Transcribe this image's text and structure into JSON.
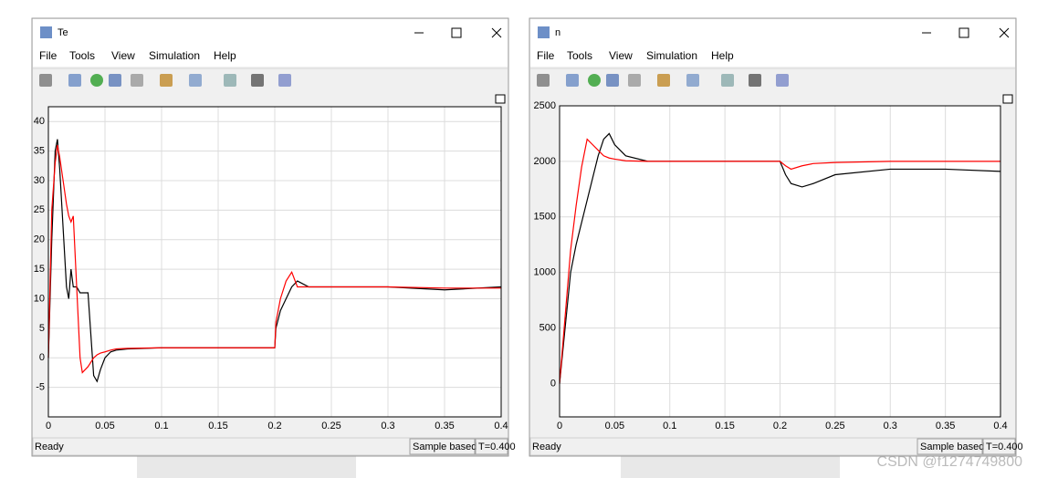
{
  "windows": [
    {
      "title": "Te",
      "menu": [
        "File",
        "Tools",
        "View",
        "Simulation",
        "Help"
      ],
      "status": "Ready",
      "sample": "Sample based",
      "time": "T=0.400"
    },
    {
      "title": "n",
      "menu": [
        "File",
        "Tools",
        "View",
        "Simulation",
        "Help"
      ],
      "status": "Ready",
      "sample": "Sample based",
      "time": "T=0.400"
    }
  ],
  "chart_data": [
    {
      "type": "line",
      "grid": true,
      "xlim": [
        0,
        0.4
      ],
      "ylim": [
        -10,
        42.5
      ],
      "xticks": [
        0,
        0.05,
        0.1,
        0.15,
        0.2,
        0.25,
        0.3,
        0.35,
        0.4
      ],
      "yticks": [
        -5,
        0,
        5,
        10,
        15,
        20,
        25,
        30,
        35,
        40
      ],
      "x": [
        0,
        0.003,
        0.006,
        0.008,
        0.01,
        0.013,
        0.016,
        0.018,
        0.02,
        0.022,
        0.025,
        0.028,
        0.03,
        0.035,
        0.04,
        0.043,
        0.046,
        0.05,
        0.055,
        0.06,
        0.07,
        0.1,
        0.15,
        0.2,
        0.201,
        0.205,
        0.21,
        0.215,
        0.22,
        0.23,
        0.25,
        0.3,
        0.35,
        0.4
      ],
      "series": [
        {
          "color": "#000000",
          "values": [
            0,
            20,
            35,
            37,
            32,
            22,
            12,
            10,
            15,
            12,
            12,
            11,
            11,
            11,
            -3,
            -4,
            -2,
            0,
            1,
            1.3,
            1.5,
            1.7,
            1.7,
            1.7,
            5,
            8,
            10,
            12,
            13,
            12,
            12,
            12,
            11.5,
            12
          ]
        },
        {
          "color": "#ff0000",
          "values": [
            0,
            25,
            33,
            36,
            34,
            30,
            26,
            24,
            23,
            24,
            12,
            0,
            -2.5,
            -1.5,
            0,
            0.5,
            0.8,
            1,
            1.3,
            1.5,
            1.6,
            1.7,
            1.7,
            1.7,
            6,
            10,
            13,
            14.5,
            12,
            12,
            12,
            12,
            11.8,
            11.8
          ]
        }
      ]
    },
    {
      "type": "line",
      "grid": true,
      "xlim": [
        0,
        0.4
      ],
      "ylim": [
        -300,
        2500
      ],
      "xticks": [
        0,
        0.05,
        0.1,
        0.15,
        0.2,
        0.25,
        0.3,
        0.35,
        0.4
      ],
      "yticks": [
        0,
        500,
        1000,
        1500,
        2000,
        2500
      ],
      "x": [
        0,
        0.01,
        0.015,
        0.02,
        0.025,
        0.03,
        0.035,
        0.04,
        0.045,
        0.05,
        0.06,
        0.08,
        0.1,
        0.2,
        0.205,
        0.21,
        0.22,
        0.23,
        0.25,
        0.3,
        0.35,
        0.4
      ],
      "series": [
        {
          "color": "#000000",
          "values": [
            0,
            1000,
            1250,
            1450,
            1650,
            1850,
            2050,
            2200,
            2250,
            2150,
            2050,
            2000,
            2000,
            2000,
            1880,
            1800,
            1770,
            1800,
            1880,
            1930,
            1930,
            1910
          ]
        },
        {
          "color": "#ff0000",
          "values": [
            0,
            1200,
            1600,
            1950,
            2200,
            2150,
            2100,
            2050,
            2030,
            2020,
            2005,
            2000,
            2000,
            2000,
            1960,
            1930,
            1960,
            1980,
            1990,
            2000,
            2000,
            2000
          ]
        }
      ]
    }
  ],
  "watermark": "CSDN @f1274749800"
}
